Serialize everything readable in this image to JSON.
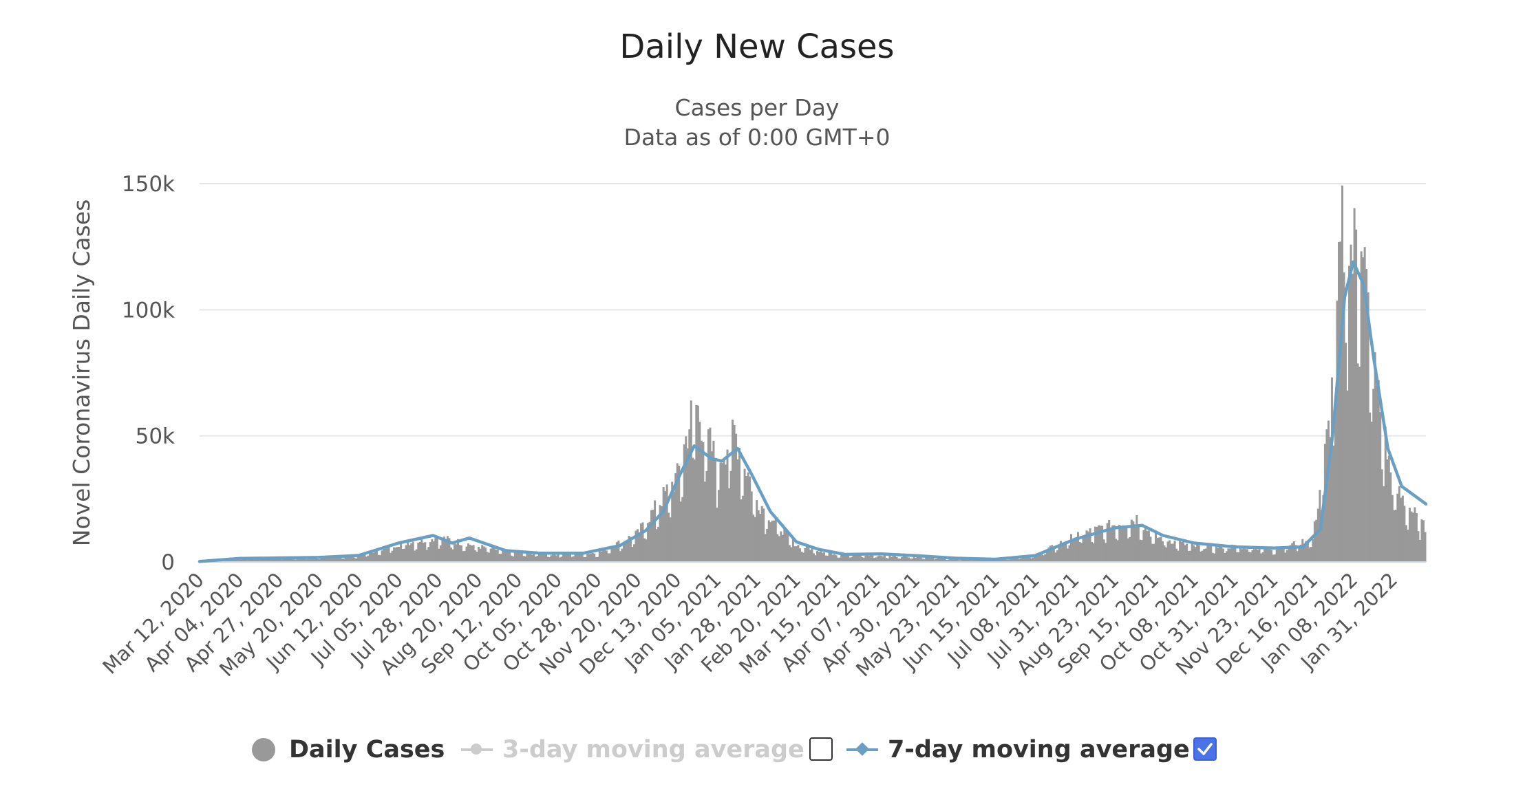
{
  "chart_data": {
    "type": "bar",
    "title": "Daily New Cases",
    "subtitle_1": "Cases per Day",
    "subtitle_2": "Data as of 0:00 GMT+0",
    "ylabel": "Novel Coronavirus Daily Cases",
    "ylim": [
      0,
      150000
    ],
    "y_ticks": [
      {
        "value": 0,
        "label": "0"
      },
      {
        "value": 50000,
        "label": "50k"
      },
      {
        "value": 100000,
        "label": "100k"
      },
      {
        "value": 150000,
        "label": "150k"
      }
    ],
    "grid": true,
    "x_tick_labels": [
      "Mar 12, 2020",
      "Apr 04, 2020",
      "Apr 27, 2020",
      "May 20, 2020",
      "Jun 12, 2020",
      "Jul 05, 2020",
      "Jul 28, 2020",
      "Aug 20, 2020",
      "Sep 12, 2020",
      "Oct 05, 2020",
      "Oct 28, 2020",
      "Nov 20, 2020",
      "Dec 13, 2020",
      "Jan 05, 2021",
      "Jan 28, 2021",
      "Feb 20, 2021",
      "Mar 15, 2021",
      "Apr 07, 2021",
      "Apr 30, 2021",
      "May 23, 2021",
      "Jun 15, 2021",
      "Jul 08, 2021",
      "Jul 31, 2021",
      "Aug 23, 2021",
      "Sep 15, 2021",
      "Oct 08, 2021",
      "Oct 31, 2021",
      "Nov 23, 2021",
      "Dec 16, 2021",
      "Jan 08, 2022",
      "Jan 31, 2022"
    ],
    "x_start": "2020-03-12",
    "x_end": "2022-02-19",
    "daily_cases_approx": [
      [
        "2020-03-12",
        200
      ],
      [
        "2020-04-04",
        1300
      ],
      [
        "2020-04-27",
        1600
      ],
      [
        "2020-05-20",
        1800
      ],
      [
        "2020-06-12",
        2500
      ],
      [
        "2020-07-05",
        7000
      ],
      [
        "2020-07-28",
        9500
      ],
      [
        "2020-08-20",
        6000
      ],
      [
        "2020-09-12",
        3500
      ],
      [
        "2020-10-05",
        3000
      ],
      [
        "2020-10-28",
        3500
      ],
      [
        "2020-11-20",
        11000
      ],
      [
        "2020-12-13",
        33000
      ],
      [
        "2020-12-23",
        62000
      ],
      [
        "2021-01-05",
        38000
      ],
      [
        "2021-01-15",
        51000
      ],
      [
        "2021-01-28",
        24000
      ],
      [
        "2021-02-20",
        6500
      ],
      [
        "2021-03-15",
        3000
      ],
      [
        "2021-04-07",
        2500
      ],
      [
        "2021-04-30",
        2000
      ],
      [
        "2021-05-23",
        1200
      ],
      [
        "2021-06-15",
        1000
      ],
      [
        "2021-07-08",
        2500
      ],
      [
        "2021-07-31",
        10000
      ],
      [
        "2021-08-23",
        14500
      ],
      [
        "2021-09-05",
        17000
      ],
      [
        "2021-09-15",
        10000
      ],
      [
        "2021-10-08",
        6000
      ],
      [
        "2021-10-31",
        6000
      ],
      [
        "2021-11-23",
        5000
      ],
      [
        "2021-12-16",
        9000
      ],
      [
        "2021-12-26",
        56000
      ],
      [
        "2022-01-02",
        127000
      ],
      [
        "2022-01-08",
        118000
      ],
      [
        "2022-01-13",
        137000
      ],
      [
        "2022-01-18",
        85000
      ],
      [
        "2022-01-31",
        30000
      ],
      [
        "2022-02-19",
        13000
      ]
    ],
    "series": [
      {
        "name": "Daily Cases",
        "type": "bar",
        "color": "#999999",
        "visible": true
      },
      {
        "name": "3-day moving average",
        "type": "line",
        "color": "#cccccc",
        "visible": false
      },
      {
        "name": "7-day moving average",
        "type": "line",
        "color": "#6a9fc4",
        "visible": true,
        "points": [
          [
            "2020-03-12",
            200
          ],
          [
            "2020-04-04",
            1400
          ],
          [
            "2020-04-27",
            1600
          ],
          [
            "2020-05-20",
            1800
          ],
          [
            "2020-06-12",
            2600
          ],
          [
            "2020-07-05",
            7500
          ],
          [
            "2020-07-25",
            10500
          ],
          [
            "2020-08-05",
            7500
          ],
          [
            "2020-08-15",
            9500
          ],
          [
            "2020-09-05",
            4500
          ],
          [
            "2020-09-25",
            3500
          ],
          [
            "2020-10-20",
            3500
          ],
          [
            "2020-11-10",
            6500
          ],
          [
            "2020-11-25",
            12500
          ],
          [
            "2020-12-05",
            20000
          ],
          [
            "2020-12-15",
            35000
          ],
          [
            "2020-12-23",
            46000
          ],
          [
            "2021-01-02",
            41000
          ],
          [
            "2021-01-08",
            40000
          ],
          [
            "2021-01-17",
            45000
          ],
          [
            "2021-01-25",
            35000
          ],
          [
            "2021-02-05",
            20000
          ],
          [
            "2021-02-20",
            8000
          ],
          [
            "2021-03-05",
            5000
          ],
          [
            "2021-03-20",
            3000
          ],
          [
            "2021-04-10",
            3200
          ],
          [
            "2021-04-30",
            2500
          ],
          [
            "2021-05-23",
            1500
          ],
          [
            "2021-06-15",
            1100
          ],
          [
            "2021-07-08",
            2500
          ],
          [
            "2021-07-31",
            9000
          ],
          [
            "2021-08-23",
            13500
          ],
          [
            "2021-09-08",
            14500
          ],
          [
            "2021-09-20",
            10500
          ],
          [
            "2021-10-08",
            7500
          ],
          [
            "2021-10-31",
            6000
          ],
          [
            "2021-11-23",
            5500
          ],
          [
            "2021-12-10",
            6000
          ],
          [
            "2021-12-20",
            13000
          ],
          [
            "2021-12-27",
            50000
          ],
          [
            "2022-01-03",
            105000
          ],
          [
            "2022-01-08",
            119000
          ],
          [
            "2022-01-14",
            110000
          ],
          [
            "2022-01-20",
            80000
          ],
          [
            "2022-01-28",
            45000
          ],
          [
            "2022-02-05",
            30000
          ],
          [
            "2022-02-19",
            23000
          ]
        ]
      }
    ],
    "legend_placement": "bottom-center"
  },
  "legend": {
    "items": [
      {
        "label": "Daily Cases",
        "enabled": true
      },
      {
        "label": "3-day moving average",
        "enabled": false,
        "checked": false
      },
      {
        "label": "7-day moving average",
        "enabled": true,
        "checked": true
      }
    ]
  },
  "colors": {
    "bars": "#999999",
    "ma7": "#6a9fc4",
    "ma3_disabled": "#cccccc",
    "checkbox_on": "#4a73e8",
    "grid": "#e6e6e6"
  }
}
